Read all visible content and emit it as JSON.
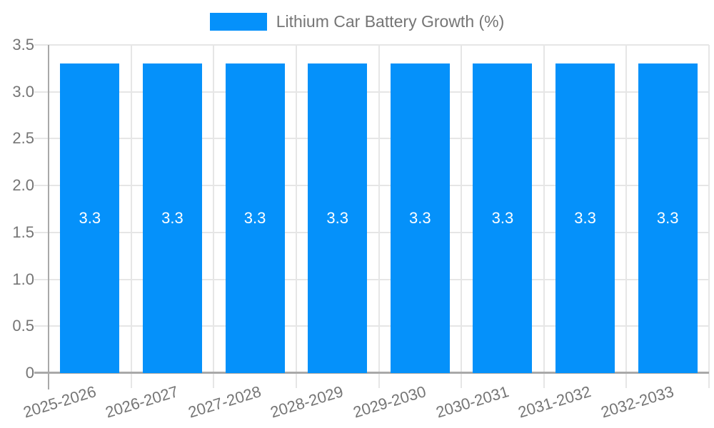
{
  "legend": {
    "swatch_color": "#0591fa",
    "label": "Lithium Car Battery Growth (%)"
  },
  "colors": {
    "bar": "#0591fa",
    "axis_text": "#757575",
    "value_text": "#ffffff",
    "grid": "#e6e6e6",
    "axis_line": "#a9a9a9",
    "background": "#ffffff"
  },
  "chart_data": {
    "type": "bar",
    "title": "Lithium Car Battery Growth (%)",
    "categories": [
      "2025-2026",
      "2026-2027",
      "2027-2028",
      "2028-2029",
      "2029-2030",
      "2030-2031",
      "2031-2032",
      "2032-2033"
    ],
    "values": [
      3.3,
      3.3,
      3.3,
      3.3,
      3.3,
      3.3,
      3.3,
      3.3
    ],
    "bar_labels": [
      "3.3",
      "3.3",
      "3.3",
      "3.3",
      "3.3",
      "3.3",
      "3.3",
      "3.3"
    ],
    "xlabel": "",
    "ylabel": "",
    "ylim": [
      0,
      3.5
    ],
    "yticks": [
      {
        "value": 0,
        "label": "0"
      },
      {
        "value": 0.5,
        "label": "0.5"
      },
      {
        "value": 1.0,
        "label": "1.0"
      },
      {
        "value": 1.5,
        "label": "1.5"
      },
      {
        "value": 2.0,
        "label": "2.0"
      },
      {
        "value": 2.5,
        "label": "2.5"
      },
      {
        "value": 3.0,
        "label": "3.0"
      },
      {
        "value": 3.5,
        "label": "3.5"
      }
    ],
    "grid": true,
    "legend_position": "top",
    "x_label_rotation_deg": -17,
    "bar_label_position": "center"
  }
}
